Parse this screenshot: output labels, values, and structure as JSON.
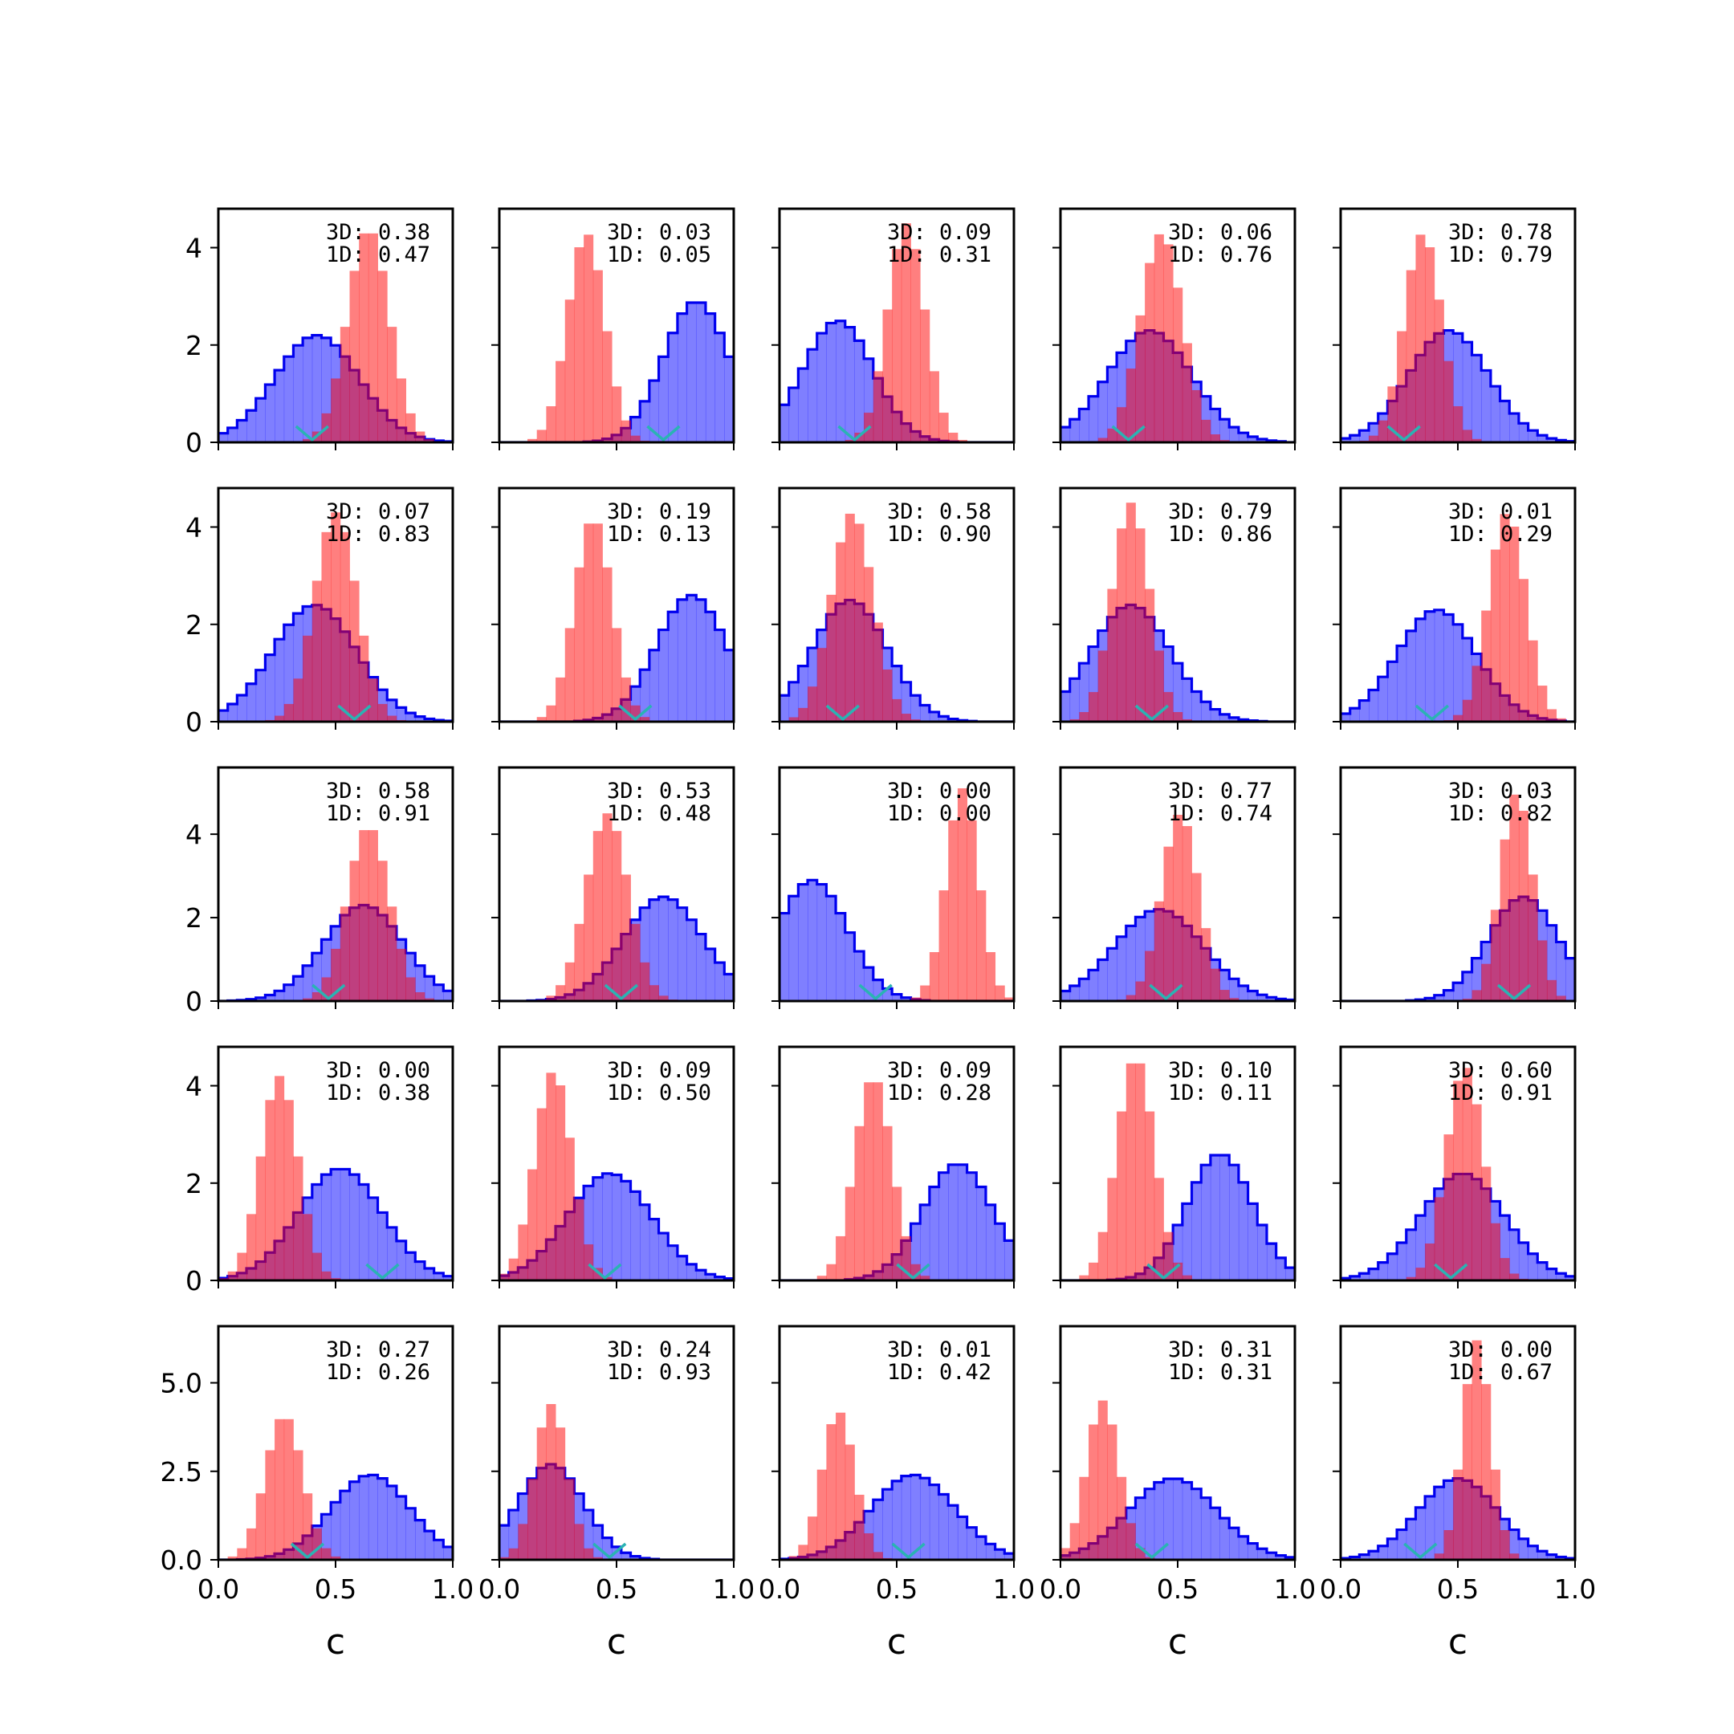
{
  "chart_data": {
    "type": "histogram-grid",
    "rows": 5,
    "cols": 5,
    "xlim": [
      0,
      1
    ],
    "x_ticks": [
      "0.0",
      "0.5",
      "1.0"
    ],
    "x_tick_values": [
      0,
      0.5,
      1
    ],
    "xlabel": "c",
    "row_axes": [
      {
        "ylim": [
          0,
          4.8
        ],
        "y_ticks": [
          0,
          2,
          4
        ],
        "y_tick_labels": [
          "0",
          "2",
          "4"
        ]
      },
      {
        "ylim": [
          0,
          4.8
        ],
        "y_ticks": [
          0,
          2,
          4
        ],
        "y_tick_labels": [
          "0",
          "2",
          "4"
        ]
      },
      {
        "ylim": [
          0,
          5.6
        ],
        "y_ticks": [
          0,
          2,
          4
        ],
        "y_tick_labels": [
          "0",
          "2",
          "4"
        ]
      },
      {
        "ylim": [
          0,
          4.8
        ],
        "y_ticks": [
          0,
          2,
          4
        ],
        "y_tick_labels": [
          "0",
          "2",
          "4"
        ]
      },
      {
        "ylim": [
          0,
          6.6
        ],
        "y_ticks": [
          0,
          2.5,
          5
        ],
        "y_tick_labels": [
          "0.0",
          "2.5",
          "5.0"
        ]
      }
    ],
    "colors": {
      "blue_fill": "#0000ff",
      "blue_edge": "#0000ee",
      "red_fill": "#ff0000",
      "marker": "#2ab3b3"
    },
    "panels": [
      {
        "label_3d": "3D: 0.38",
        "label_1d": "1D: 0.47",
        "blue": {
          "mu": 0.42,
          "sigma": 0.18,
          "peak": 2.2
        },
        "red": {
          "mu": 0.64,
          "sigma": 0.09,
          "peak": 4.4
        },
        "marker": 0.4
      },
      {
        "label_3d": "3D: 0.03",
        "label_1d": "1D: 0.05",
        "blue": {
          "mu": 0.84,
          "sigma": 0.14,
          "peak": 2.9
        },
        "red": {
          "mu": 0.37,
          "sigma": 0.08,
          "peak": 4.3
        },
        "marker": 0.7
      },
      {
        "label_3d": "3D: 0.09",
        "label_1d": "1D: 0.31",
        "blue": {
          "mu": 0.25,
          "sigma": 0.15,
          "peak": 2.5
        },
        "red": {
          "mu": 0.54,
          "sigma": 0.08,
          "peak": 4.5
        },
        "marker": 0.32
      },
      {
        "label_3d": "3D: 0.06",
        "label_1d": "1D: 0.76",
        "blue": {
          "mu": 0.38,
          "sigma": 0.18,
          "peak": 2.3
        },
        "red": {
          "mu": 0.43,
          "sigma": 0.09,
          "peak": 4.3
        },
        "marker": 0.29
      },
      {
        "label_3d": "3D: 0.78",
        "label_1d": "1D: 0.79",
        "blue": {
          "mu": 0.46,
          "sigma": 0.17,
          "peak": 2.3
        },
        "red": {
          "mu": 0.35,
          "sigma": 0.08,
          "peak": 4.3
        },
        "marker": 0.27
      },
      {
        "label_3d": "3D: 0.07",
        "label_1d": "1D: 0.83",
        "blue": {
          "mu": 0.41,
          "sigma": 0.18,
          "peak": 2.4
        },
        "red": {
          "mu": 0.5,
          "sigma": 0.09,
          "peak": 4.3
        },
        "marker": 0.58
      },
      {
        "label_3d": "3D: 0.19",
        "label_1d": "1D: 0.13",
        "blue": {
          "mu": 0.82,
          "sigma": 0.15,
          "peak": 2.6
        },
        "red": {
          "mu": 0.4,
          "sigma": 0.08,
          "peak": 4.2
        },
        "marker": 0.58
      },
      {
        "label_3d": "3D: 0.58",
        "label_1d": "1D: 0.90",
        "blue": {
          "mu": 0.3,
          "sigma": 0.16,
          "peak": 2.5
        },
        "red": {
          "mu": 0.31,
          "sigma": 0.09,
          "peak": 4.3
        },
        "marker": 0.27
      },
      {
        "label_3d": "3D: 0.79",
        "label_1d": "1D: 0.86",
        "blue": {
          "mu": 0.3,
          "sigma": 0.17,
          "peak": 2.4
        },
        "red": {
          "mu": 0.3,
          "sigma": 0.08,
          "peak": 4.5
        },
        "marker": 0.39
      },
      {
        "label_3d": "3D: 0.01",
        "label_1d": "1D: 0.29",
        "blue": {
          "mu": 0.41,
          "sigma": 0.17,
          "peak": 2.3
        },
        "red": {
          "mu": 0.71,
          "sigma": 0.08,
          "peak": 4.3
        },
        "marker": 0.39
      },
      {
        "label_3d": "3D: 0.58",
        "label_1d": "1D: 0.91",
        "blue": {
          "mu": 0.62,
          "sigma": 0.17,
          "peak": 2.3
        },
        "red": {
          "mu": 0.64,
          "sigma": 0.09,
          "peak": 4.2
        },
        "marker": 0.47
      },
      {
        "label_3d": "3D: 0.53",
        "label_1d": "1D: 0.48",
        "blue": {
          "mu": 0.7,
          "sigma": 0.17,
          "peak": 2.5
        },
        "red": {
          "mu": 0.46,
          "sigma": 0.09,
          "peak": 4.5
        },
        "marker": 0.52
      },
      {
        "label_3d": "3D: 0.00",
        "label_1d": "1D: 0.00",
        "blue": {
          "mu": 0.14,
          "sigma": 0.15,
          "peak": 2.9
        },
        "red": {
          "mu": 0.78,
          "sigma": 0.07,
          "peak": 5.1
        },
        "marker": 0.41
      },
      {
        "label_3d": "3D: 0.77",
        "label_1d": "1D: 0.74",
        "blue": {
          "mu": 0.42,
          "sigma": 0.19,
          "peak": 2.2
        },
        "red": {
          "mu": 0.51,
          "sigma": 0.08,
          "peak": 4.5
        },
        "marker": 0.45
      },
      {
        "label_3d": "3D: 0.03",
        "label_1d": "1D: 0.82",
        "blue": {
          "mu": 0.78,
          "sigma": 0.15,
          "peak": 2.5
        },
        "red": {
          "mu": 0.75,
          "sigma": 0.07,
          "peak": 5.0
        },
        "marker": 0.74
      },
      {
        "label_3d": "3D: 0.00",
        "label_1d": "1D: 0.38",
        "blue": {
          "mu": 0.52,
          "sigma": 0.18,
          "peak": 2.3
        },
        "red": {
          "mu": 0.26,
          "sigma": 0.08,
          "peak": 4.2
        },
        "marker": 0.7
      },
      {
        "label_3d": "3D: 0.09",
        "label_1d": "1D: 0.50",
        "blue": {
          "mu": 0.47,
          "sigma": 0.18,
          "peak": 2.2
        },
        "red": {
          "mu": 0.23,
          "sigma": 0.08,
          "peak": 4.3
        },
        "marker": 0.45
      },
      {
        "label_3d": "3D: 0.09",
        "label_1d": "1D: 0.28",
        "blue": {
          "mu": 0.76,
          "sigma": 0.15,
          "peak": 2.4
        },
        "red": {
          "mu": 0.4,
          "sigma": 0.08,
          "peak": 4.2
        },
        "marker": 0.57
      },
      {
        "label_3d": "3D: 0.10",
        "label_1d": "1D: 0.11",
        "blue": {
          "mu": 0.68,
          "sigma": 0.14,
          "peak": 2.6
        },
        "red": {
          "mu": 0.32,
          "sigma": 0.08,
          "peak": 4.6
        },
        "marker": 0.44
      },
      {
        "label_3d": "3D: 0.60",
        "label_1d": "1D: 0.91",
        "blue": {
          "mu": 0.52,
          "sigma": 0.18,
          "peak": 2.2
        },
        "red": {
          "mu": 0.53,
          "sigma": 0.08,
          "peak": 4.4
        },
        "marker": 0.47
      },
      {
        "label_3d": "3D: 0.27",
        "label_1d": "1D: 0.26",
        "blue": {
          "mu": 0.65,
          "sigma": 0.17,
          "peak": 2.4
        },
        "red": {
          "mu": 0.28,
          "sigma": 0.08,
          "peak": 4.1
        },
        "marker": 0.38
      },
      {
        "label_3d": "3D: 0.24",
        "label_1d": "1D: 0.93",
        "blue": {
          "mu": 0.22,
          "sigma": 0.14,
          "peak": 2.7
        },
        "red": {
          "mu": 0.22,
          "sigma": 0.07,
          "peak": 4.4
        },
        "marker": 0.47
      },
      {
        "label_3d": "3D: 0.01",
        "label_1d": "1D: 0.42",
        "blue": {
          "mu": 0.57,
          "sigma": 0.18,
          "peak": 2.4
        },
        "red": {
          "mu": 0.25,
          "sigma": 0.07,
          "peak": 4.2
        },
        "marker": 0.55
      },
      {
        "label_3d": "3D: 0.31",
        "label_1d": "1D: 0.31",
        "blue": {
          "mu": 0.48,
          "sigma": 0.19,
          "peak": 2.3
        },
        "red": {
          "mu": 0.18,
          "sigma": 0.07,
          "peak": 4.5
        },
        "marker": 0.39
      },
      {
        "label_3d": "3D: 0.00",
        "label_1d": "1D: 0.67",
        "blue": {
          "mu": 0.5,
          "sigma": 0.17,
          "peak": 2.3
        },
        "red": {
          "mu": 0.58,
          "sigma": 0.06,
          "peak": 6.2
        },
        "marker": 0.34
      }
    ]
  }
}
